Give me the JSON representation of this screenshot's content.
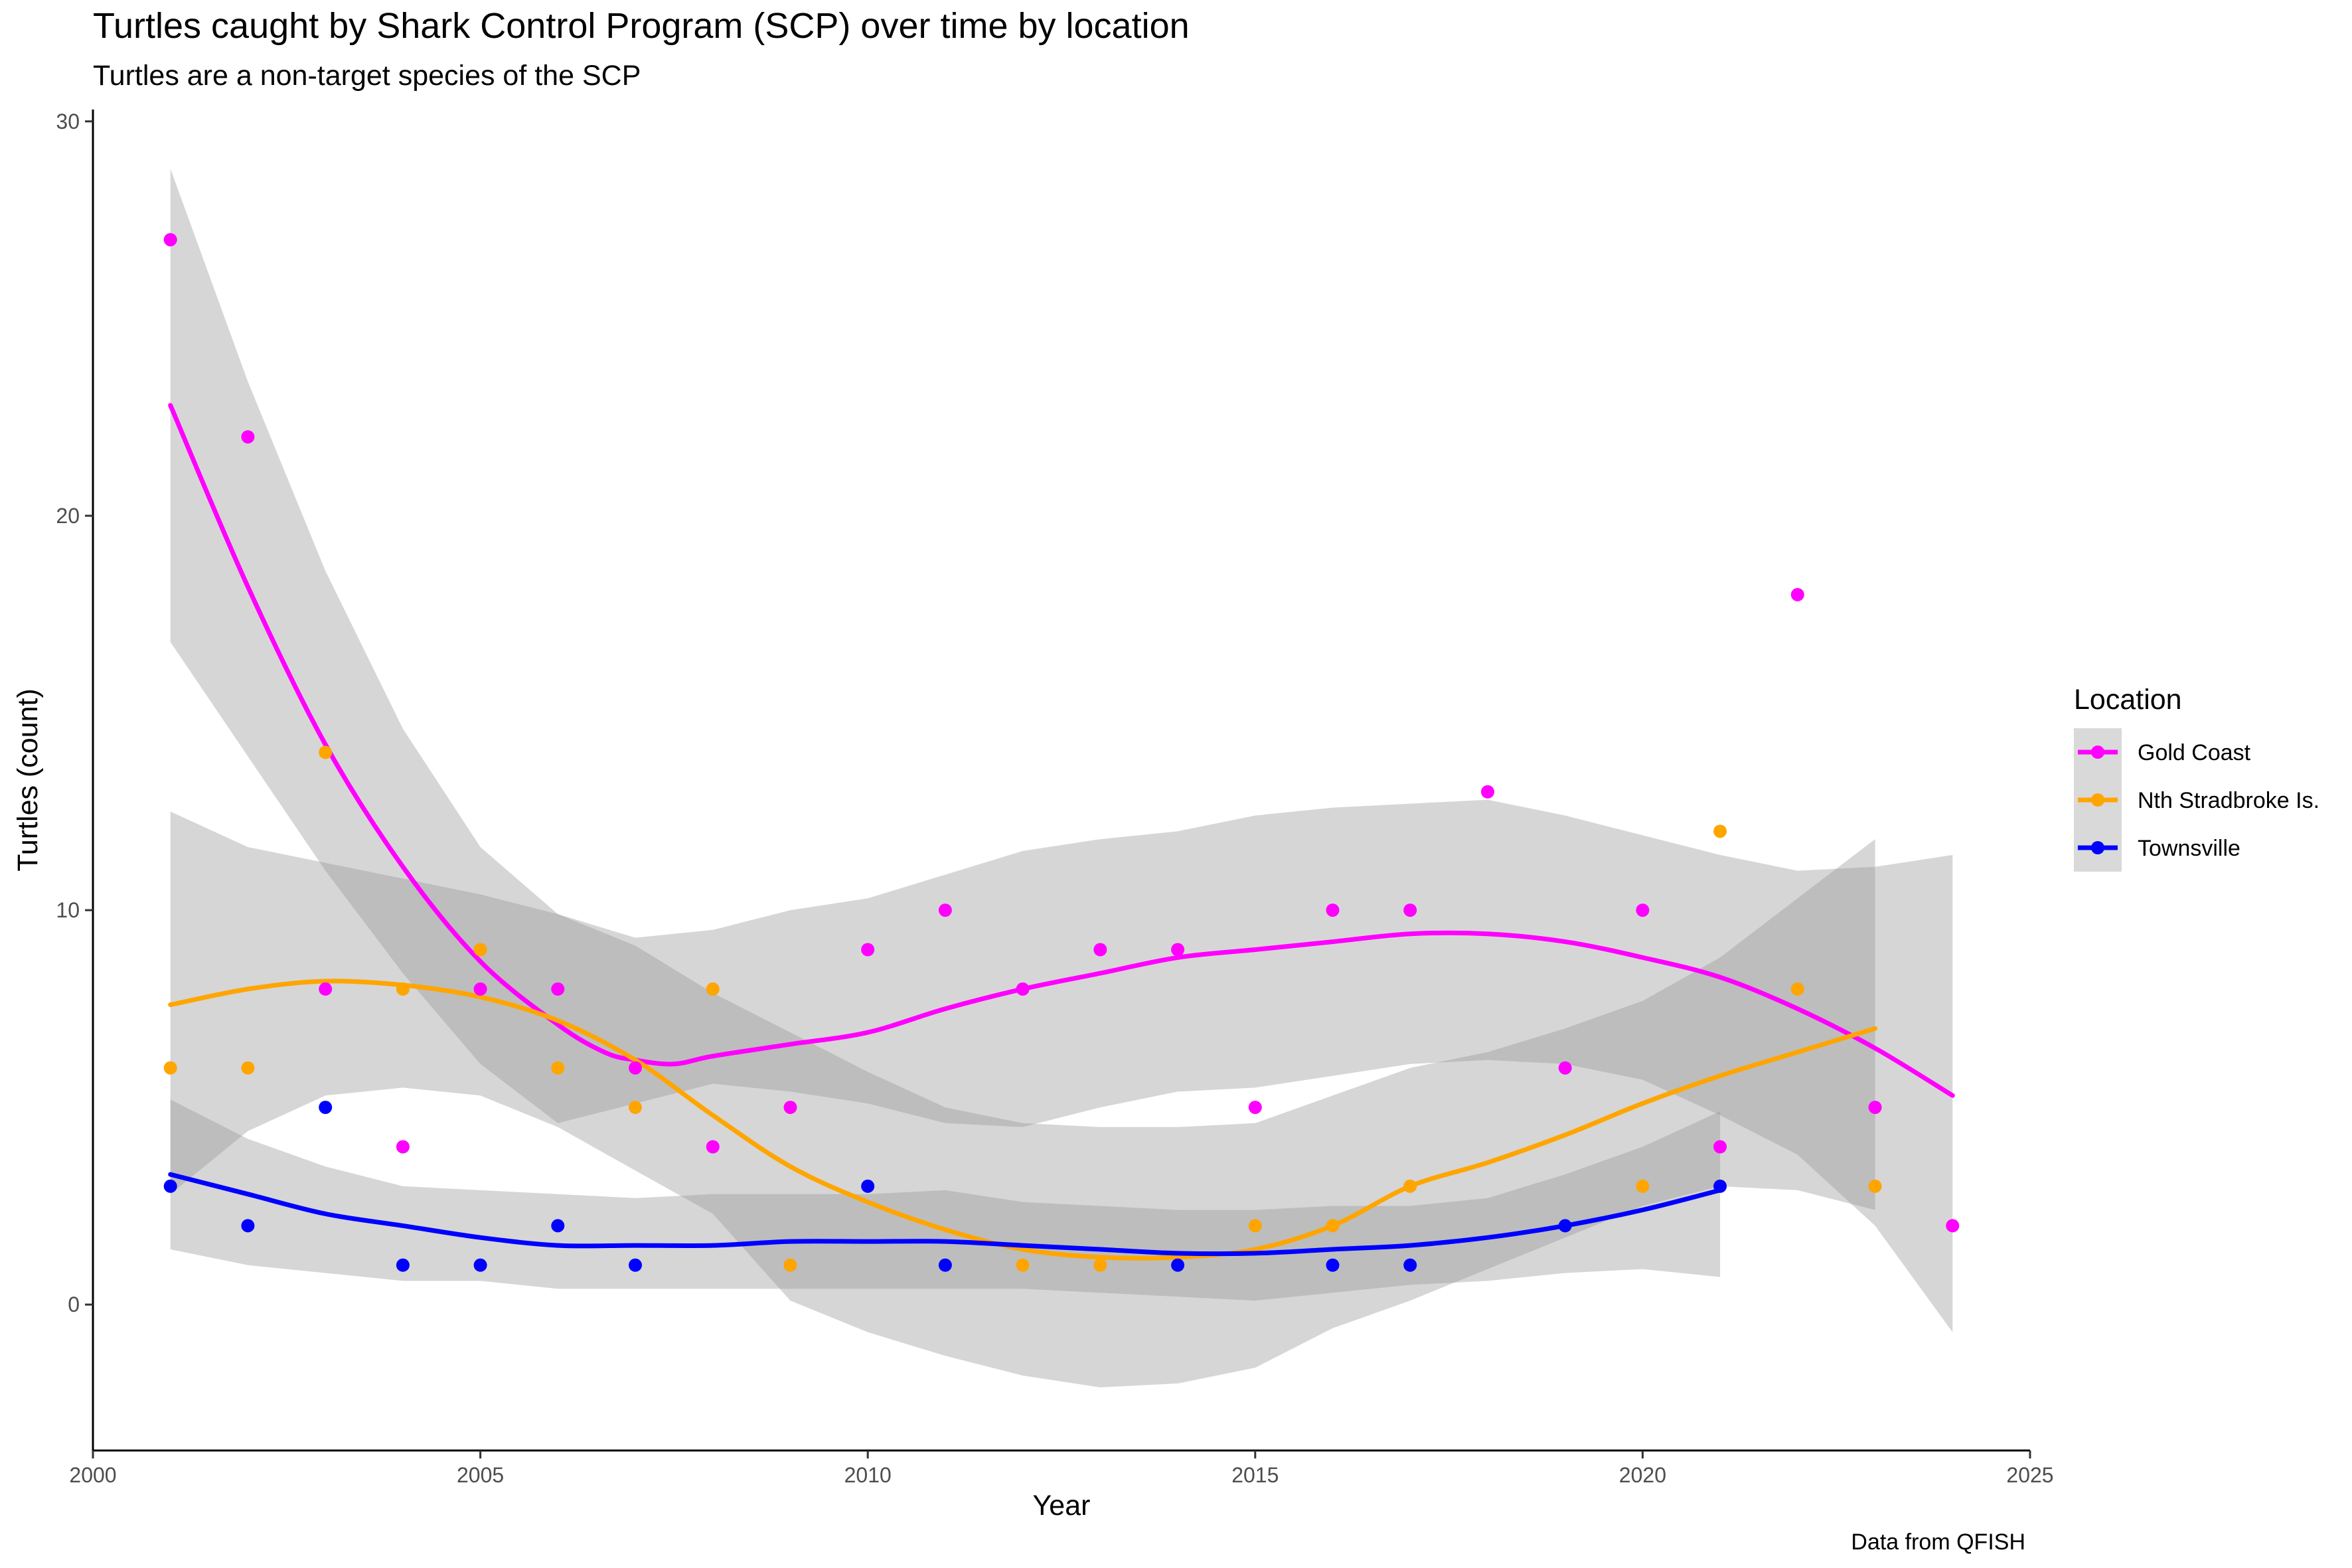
{
  "chart_data": {
    "type": "scatter",
    "title": "Turtles caught by Shark Control Program (SCP) over time by location",
    "subtitle": "Turtles are a non-target species of the SCP",
    "caption": "Data from QFISH",
    "xlabel": "Year",
    "ylabel": "Turtles (count)",
    "xlim": [
      2000,
      2025
    ],
    "ylim": [
      -3.7,
      30.3
    ],
    "x_ticks": [
      2000,
      2005,
      2010,
      2015,
      2020,
      2025
    ],
    "y_ticks": [
      0,
      10,
      20,
      30
    ],
    "grid": false,
    "legend": {
      "title": "Location",
      "position": "right"
    },
    "series": [
      {
        "name": "Gold Coast",
        "color": "#FF00FF",
        "points": [
          [
            2001,
            27
          ],
          [
            2002,
            22
          ],
          [
            2003,
            8
          ],
          [
            2004,
            4
          ],
          [
            2005,
            8
          ],
          [
            2006,
            8
          ],
          [
            2007,
            6
          ],
          [
            2008,
            4
          ],
          [
            2009,
            5
          ],
          [
            2010,
            9
          ],
          [
            2011,
            10
          ],
          [
            2012,
            8
          ],
          [
            2013,
            9
          ],
          [
            2014,
            9
          ],
          [
            2015,
            5
          ],
          [
            2016,
            10
          ],
          [
            2017,
            10
          ],
          [
            2018,
            13
          ],
          [
            2019,
            6
          ],
          [
            2020,
            10
          ],
          [
            2021,
            4
          ],
          [
            2022,
            18
          ],
          [
            2023,
            5
          ],
          [
            2024,
            2
          ]
        ],
        "smooth": [
          [
            2001,
            22.8
          ],
          [
            2002,
            18.2
          ],
          [
            2003,
            14.2
          ],
          [
            2004,
            11.1
          ],
          [
            2005,
            8.7
          ],
          [
            2006,
            7.1
          ],
          [
            2006.6,
            6.4
          ],
          [
            2007,
            6.2
          ],
          [
            2007.5,
            6.1
          ],
          [
            2008,
            6.3
          ],
          [
            2009,
            6.6
          ],
          [
            2010,
            6.9
          ],
          [
            2011,
            7.5
          ],
          [
            2012,
            8.0
          ],
          [
            2013,
            8.4
          ],
          [
            2014,
            8.8
          ],
          [
            2015,
            9.0
          ],
          [
            2016,
            9.2
          ],
          [
            2017,
            9.4
          ],
          [
            2018,
            9.4
          ],
          [
            2019,
            9.2
          ],
          [
            2020,
            8.8
          ],
          [
            2021,
            8.3
          ],
          [
            2022,
            7.5
          ],
          [
            2023,
            6.5
          ],
          [
            2024,
            5.3
          ]
        ],
        "band": [
          [
            2001,
            16.8,
            28.8
          ],
          [
            2002,
            13.9,
            23.4
          ],
          [
            2003,
            11.0,
            18.6
          ],
          [
            2004,
            8.4,
            14.6
          ],
          [
            2005,
            6.1,
            11.6
          ],
          [
            2006,
            4.6,
            9.9
          ],
          [
            2007,
            5.1,
            9.3
          ],
          [
            2008,
            5.6,
            9.5
          ],
          [
            2009,
            5.4,
            10.0
          ],
          [
            2010,
            5.1,
            10.3
          ],
          [
            2011,
            4.6,
            10.9
          ],
          [
            2012,
            4.5,
            11.5
          ],
          [
            2013,
            5.0,
            11.8
          ],
          [
            2014,
            5.4,
            12.0
          ],
          [
            2015,
            5.5,
            12.4
          ],
          [
            2016,
            5.8,
            12.6
          ],
          [
            2017,
            6.1,
            12.7
          ],
          [
            2018,
            6.2,
            12.8
          ],
          [
            2019,
            6.1,
            12.4
          ],
          [
            2020,
            5.7,
            11.9
          ],
          [
            2021,
            4.8,
            11.4
          ],
          [
            2022,
            3.8,
            11.0
          ],
          [
            2023,
            2.0,
            11.1
          ],
          [
            2024,
            -0.7,
            11.4
          ]
        ]
      },
      {
        "name": "Nth Stradbroke Is.",
        "color": "#FFA500",
        "points": [
          [
            2001,
            6
          ],
          [
            2002,
            6
          ],
          [
            2003,
            14
          ],
          [
            2004,
            8
          ],
          [
            2005,
            9
          ],
          [
            2006,
            6
          ],
          [
            2007,
            5
          ],
          [
            2008,
            8
          ],
          [
            2009,
            1
          ],
          [
            2012,
            1
          ],
          [
            2013,
            1
          ],
          [
            2015,
            2
          ],
          [
            2016,
            2
          ],
          [
            2017,
            3
          ],
          [
            2020,
            3
          ],
          [
            2021,
            12
          ],
          [
            2022,
            8
          ],
          [
            2023,
            3
          ]
        ],
        "smooth": [
          [
            2001,
            7.6
          ],
          [
            2002,
            8.0
          ],
          [
            2003,
            8.2
          ],
          [
            2004,
            8.1
          ],
          [
            2005,
            7.8
          ],
          [
            2006,
            7.2
          ],
          [
            2007,
            6.2
          ],
          [
            2008,
            4.8
          ],
          [
            2009,
            3.5
          ],
          [
            2010,
            2.6
          ],
          [
            2011,
            1.9
          ],
          [
            2012,
            1.4
          ],
          [
            2013,
            1.2
          ],
          [
            2014,
            1.2
          ],
          [
            2015,
            1.4
          ],
          [
            2016,
            2.0
          ],
          [
            2017,
            3.0
          ],
          [
            2018,
            3.6
          ],
          [
            2019,
            4.3
          ],
          [
            2020,
            5.1
          ],
          [
            2021,
            5.8
          ],
          [
            2022,
            6.4
          ],
          [
            2023,
            7.0
          ]
        ],
        "band": [
          [
            2001,
            2.8,
            12.5
          ],
          [
            2002,
            4.4,
            11.6
          ],
          [
            2003,
            5.3,
            11.2
          ],
          [
            2004,
            5.5,
            10.8
          ],
          [
            2005,
            5.3,
            10.4
          ],
          [
            2006,
            4.5,
            9.9
          ],
          [
            2007,
            3.4,
            9.1
          ],
          [
            2008,
            2.3,
            7.9
          ],
          [
            2009,
            0.1,
            6.9
          ],
          [
            2010,
            -0.7,
            5.9
          ],
          [
            2011,
            -1.3,
            5.0
          ],
          [
            2012,
            -1.8,
            4.6
          ],
          [
            2013,
            -2.1,
            4.5
          ],
          [
            2014,
            -2.0,
            4.5
          ],
          [
            2015,
            -1.6,
            4.6
          ],
          [
            2016,
            -0.6,
            5.3
          ],
          [
            2017,
            0.1,
            6.0
          ],
          [
            2018,
            0.9,
            6.4
          ],
          [
            2019,
            1.7,
            7.0
          ],
          [
            2020,
            2.5,
            7.7
          ],
          [
            2021,
            3.0,
            8.8
          ],
          [
            2022,
            2.9,
            10.3
          ],
          [
            2023,
            2.4,
            11.8
          ]
        ]
      },
      {
        "name": "Townsville",
        "color": "#0000FF",
        "points": [
          [
            2001,
            3
          ],
          [
            2002,
            2
          ],
          [
            2003,
            5
          ],
          [
            2004,
            1
          ],
          [
            2005,
            1
          ],
          [
            2006,
            2
          ],
          [
            2007,
            1
          ],
          [
            2010,
            3
          ],
          [
            2011,
            1
          ],
          [
            2014,
            1
          ],
          [
            2016,
            1
          ],
          [
            2017,
            1
          ],
          [
            2019,
            2
          ],
          [
            2021,
            3
          ]
        ],
        "smooth": [
          [
            2001,
            3.3
          ],
          [
            2002,
            2.8
          ],
          [
            2003,
            2.3
          ],
          [
            2004,
            2.0
          ],
          [
            2005,
            1.7
          ],
          [
            2006,
            1.5
          ],
          [
            2007,
            1.5
          ],
          [
            2008,
            1.5
          ],
          [
            2009,
            1.6
          ],
          [
            2010,
            1.6
          ],
          [
            2011,
            1.6
          ],
          [
            2012,
            1.5
          ],
          [
            2013,
            1.4
          ],
          [
            2014,
            1.3
          ],
          [
            2015,
            1.3
          ],
          [
            2016,
            1.4
          ],
          [
            2017,
            1.5
          ],
          [
            2018,
            1.7
          ],
          [
            2019,
            2.0
          ],
          [
            2020,
            2.4
          ],
          [
            2021,
            2.9
          ]
        ],
        "band": [
          [
            2001,
            1.4,
            5.2
          ],
          [
            2002,
            1.0,
            4.2
          ],
          [
            2003,
            0.8,
            3.5
          ],
          [
            2004,
            0.6,
            3.0
          ],
          [
            2005,
            0.6,
            2.9
          ],
          [
            2006,
            0.4,
            2.8
          ],
          [
            2007,
            0.4,
            2.7
          ],
          [
            2008,
            0.4,
            2.8
          ],
          [
            2009,
            0.4,
            2.8
          ],
          [
            2010,
            0.4,
            2.8
          ],
          [
            2011,
            0.4,
            2.9
          ],
          [
            2012,
            0.4,
            2.6
          ],
          [
            2013,
            0.3,
            2.5
          ],
          [
            2014,
            0.2,
            2.4
          ],
          [
            2015,
            0.1,
            2.4
          ],
          [
            2016,
            0.3,
            2.5
          ],
          [
            2017,
            0.5,
            2.5
          ],
          [
            2018,
            0.6,
            2.7
          ],
          [
            2019,
            0.8,
            3.3
          ],
          [
            2020,
            0.9,
            4.0
          ],
          [
            2021,
            0.7,
            4.9
          ]
        ]
      }
    ]
  }
}
